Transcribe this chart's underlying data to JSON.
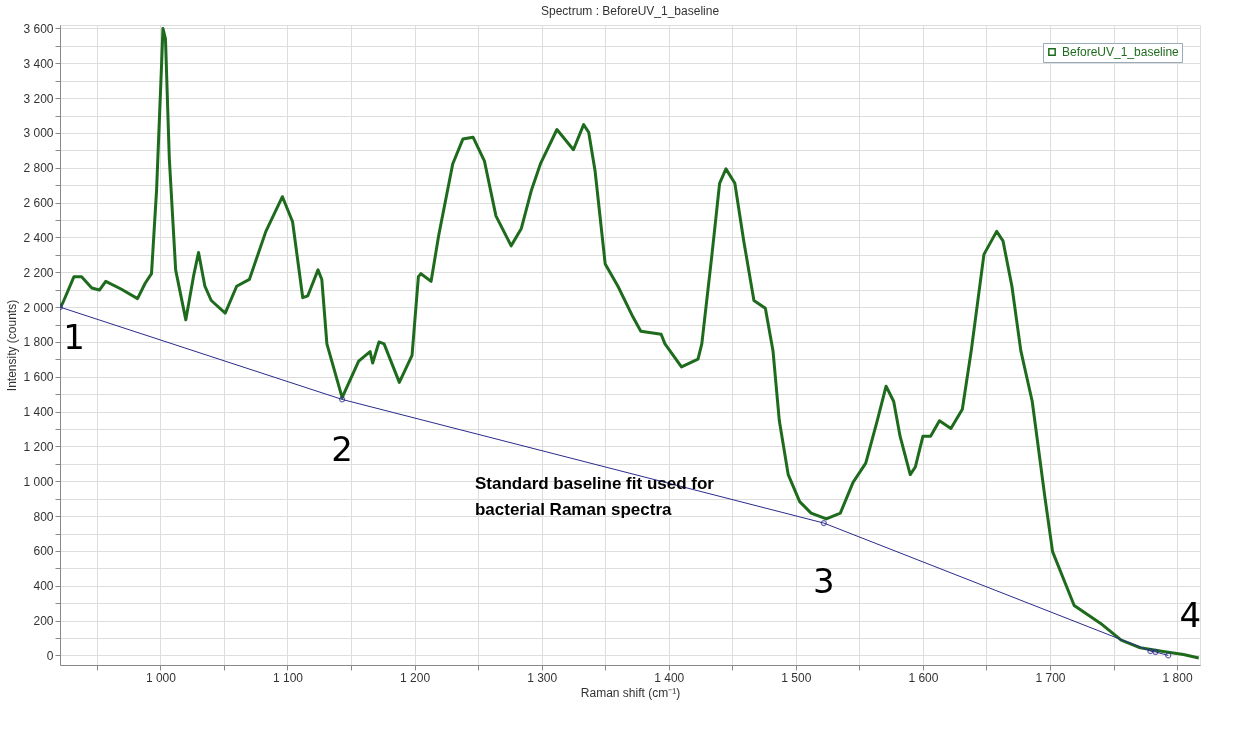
{
  "chart_data": {
    "type": "line",
    "title": "Spectrum : BeforeUV_1_baseline",
    "xlabel": "Raman shift (cm⁻¹)",
    "ylabel": "Intensity (counts)",
    "xlim": [
      921,
      1818
    ],
    "ylim": [
      -55,
      3620
    ],
    "xticks": [
      {
        "value": 950,
        "label": null
      },
      {
        "value": 1000,
        "label": "1 000"
      },
      {
        "value": 1050,
        "label": null
      },
      {
        "value": 1100,
        "label": "1 100"
      },
      {
        "value": 1150,
        "label": null
      },
      {
        "value": 1200,
        "label": "1 200"
      },
      {
        "value": 1250,
        "label": null
      },
      {
        "value": 1300,
        "label": "1 300"
      },
      {
        "value": 1350,
        "label": null
      },
      {
        "value": 1400,
        "label": "1 400"
      },
      {
        "value": 1450,
        "label": null
      },
      {
        "value": 1500,
        "label": "1 500"
      },
      {
        "value": 1550,
        "label": null
      },
      {
        "value": 1600,
        "label": "1 600"
      },
      {
        "value": 1650,
        "label": null
      },
      {
        "value": 1700,
        "label": "1 700"
      },
      {
        "value": 1750,
        "label": null
      },
      {
        "value": 1800,
        "label": "1 800"
      }
    ],
    "yticks": [
      0,
      {
        "value": 100,
        "label": null
      },
      200,
      {
        "value": 300,
        "label": null
      },
      400,
      {
        "value": 500,
        "label": null
      },
      600,
      {
        "value": 700,
        "label": null
      },
      800,
      {
        "value": 900,
        "label": null
      },
      {
        "value": 1000,
        "label": "1 000"
      },
      {
        "value": 1100,
        "label": null
      },
      {
        "value": 1200,
        "label": "1 200"
      },
      {
        "value": 1300,
        "label": null
      },
      {
        "value": 1400,
        "label": "1 400"
      },
      {
        "value": 1500,
        "label": null
      },
      {
        "value": 1600,
        "label": "1 600"
      },
      {
        "value": 1700,
        "label": null
      },
      {
        "value": 1800,
        "label": "1 800"
      },
      {
        "value": 1900,
        "label": null
      },
      {
        "value": 2000,
        "label": "2 000"
      },
      {
        "value": 2100,
        "label": null
      },
      {
        "value": 2200,
        "label": "2 200"
      },
      {
        "value": 2300,
        "label": null
      },
      {
        "value": 2400,
        "label": "2 400"
      },
      {
        "value": 2500,
        "label": null
      },
      {
        "value": 2600,
        "label": "2 600"
      },
      {
        "value": 2700,
        "label": null
      },
      {
        "value": 2800,
        "label": "2 800"
      },
      {
        "value": 2900,
        "label": null
      },
      {
        "value": 3000,
        "label": "3 000"
      },
      {
        "value": 3100,
        "label": null
      },
      {
        "value": 3200,
        "label": "3 200"
      },
      {
        "value": 3300,
        "label": null
      },
      {
        "value": 3400,
        "label": "3 400"
      },
      {
        "value": 3500,
        "label": null
      },
      {
        "value": 3600,
        "label": "3 600"
      }
    ],
    "grid": true,
    "legend": "top right",
    "series": [
      {
        "name": "BeforeUV_1_baseline",
        "color": "#1e6b1e",
        "marker": "none",
        "x": [
          921,
          923,
          932,
          938,
          946,
          952,
          957,
          969,
          982,
          988,
          993,
          997,
          1001,
          1002,
          1004,
          1007,
          1012,
          1020,
          1026,
          1030,
          1035,
          1040,
          1051,
          1060,
          1070,
          1083,
          1096,
          1104,
          1112,
          1116,
          1124,
          1127,
          1131,
          1143,
          1156,
          1165,
          1167,
          1172,
          1176,
          1188,
          1198,
          1203,
          1205,
          1213,
          1219,
          1230,
          1238,
          1246,
          1255,
          1264,
          1276,
          1284,
          1292,
          1299,
          1312,
          1325,
          1333,
          1337,
          1342,
          1350,
          1360,
          1371,
          1378,
          1394,
          1397,
          1410,
          1423,
          1426,
          1434,
          1440,
          1445,
          1452,
          1459,
          1467,
          1476,
          1482,
          1487,
          1494,
          1503,
          1512,
          1524,
          1535,
          1545,
          1555,
          1564,
          1571,
          1577,
          1582,
          1590,
          1594,
          1600,
          1606,
          1613,
          1622,
          1631,
          1638,
          1648,
          1658,
          1663,
          1670,
          1677,
          1686,
          1696,
          1702,
          1719,
          1741,
          1756,
          1771,
          1789,
          1805,
          1817
        ],
        "values": [
          2000,
          2021,
          2175,
          2175,
          2110,
          2098,
          2148,
          2104,
          2049,
          2137,
          2192,
          2673,
          3407,
          3600,
          3540,
          2855,
          2214,
          1927,
          2175,
          2314,
          2120,
          2038,
          1966,
          2120,
          2159,
          2435,
          2634,
          2490,
          2054,
          2065,
          2214,
          2159,
          1789,
          1480,
          1690,
          1745,
          1679,
          1800,
          1789,
          1568,
          1723,
          2175,
          2192,
          2148,
          2413,
          2822,
          2965,
          2976,
          2838,
          2524,
          2352,
          2452,
          2673,
          2822,
          3020,
          2904,
          3048,
          3004,
          2783,
          2247,
          2120,
          1955,
          1861,
          1844,
          1789,
          1657,
          1701,
          1789,
          2303,
          2711,
          2794,
          2711,
          2380,
          2038,
          1993,
          1750,
          1347,
          1038,
          883,
          817,
          784,
          817,
          994,
          1104,
          1347,
          1546,
          1458,
          1259,
          1038,
          1082,
          1259,
          1259,
          1347,
          1303,
          1414,
          1750,
          2303,
          2435,
          2380,
          2120,
          1750,
          1458,
          906,
          596,
          287,
          177,
          88,
          44,
          22,
          5,
          -15
        ]
      },
      {
        "color": "#2b2b8c",
        "marker": "circle",
        "x": [
          921,
          1143,
          1522,
          1779,
          1783,
          1793
        ],
        "values": [
          2000,
          1470,
          760,
          25,
          20,
          0
        ]
      }
    ],
    "annotations": [
      {
        "text": "1",
        "x": 921,
        "y": 2000
      },
      {
        "text": "2",
        "x": 1143,
        "y": 1470
      },
      {
        "text": "3",
        "x": 1522,
        "y": 760
      },
      {
        "text": "4",
        "x": 1793,
        "y": 0
      },
      "Standard baseline fit used for\nbacterial Raman spectra"
    ]
  }
}
